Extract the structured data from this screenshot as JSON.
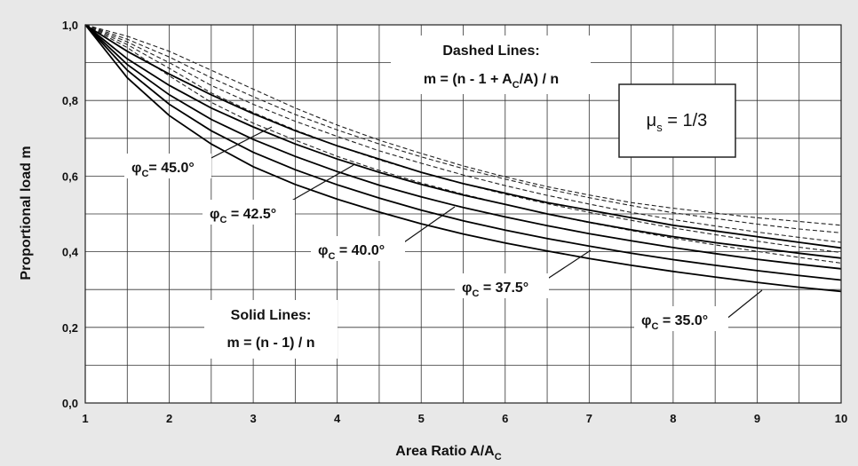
{
  "chart_data": {
    "type": "line",
    "xlabel": "Area Ratio A/A",
    "xlabel_sub": "C",
    "ylabel": "Proportional load m",
    "xlim": [
      1,
      10
    ],
    "ylim": [
      0,
      1
    ],
    "grid": true,
    "x_ticks": [
      "1",
      "2",
      "3",
      "4",
      "5",
      "6",
      "7",
      "8",
      "9",
      "10"
    ],
    "y_ticks": [
      "0,0",
      "0,2",
      "0,4",
      "0,6",
      "0,8",
      "1,0"
    ],
    "x": [
      1,
      1.5,
      2,
      2.5,
      3,
      3.5,
      4,
      4.5,
      5,
      5.5,
      6,
      6.5,
      7,
      7.5,
      8,
      8.5,
      9,
      9.5,
      10
    ],
    "solid_series": [
      {
        "phi": "45.0",
        "values": [
          1.0,
          0.93,
          0.87,
          0.815,
          0.765,
          0.72,
          0.68,
          0.645,
          0.61,
          0.58,
          0.555,
          0.53,
          0.51,
          0.49,
          0.47,
          0.455,
          0.44,
          0.425,
          0.41
        ]
      },
      {
        "phi": "42.5",
        "values": [
          1.0,
          0.91,
          0.84,
          0.78,
          0.73,
          0.685,
          0.645,
          0.61,
          0.578,
          0.55,
          0.525,
          0.5,
          0.478,
          0.458,
          0.44,
          0.424,
          0.41,
          0.396,
          0.383
        ]
      },
      {
        "phi": "40.0",
        "values": [
          1.0,
          0.895,
          0.815,
          0.75,
          0.697,
          0.652,
          0.612,
          0.576,
          0.545,
          0.517,
          0.492,
          0.469,
          0.448,
          0.429,
          0.411,
          0.395,
          0.38,
          0.367,
          0.355
        ]
      },
      {
        "phi": "37.5",
        "values": [
          1.0,
          0.88,
          0.79,
          0.72,
          0.663,
          0.617,
          0.577,
          0.542,
          0.51,
          0.482,
          0.457,
          0.435,
          0.415,
          0.396,
          0.379,
          0.364,
          0.35,
          0.337,
          0.325
        ]
      },
      {
        "phi": "35.0",
        "values": [
          1.0,
          0.86,
          0.76,
          0.685,
          0.625,
          0.578,
          0.539,
          0.505,
          0.474,
          0.447,
          0.423,
          0.402,
          0.382,
          0.364,
          0.348,
          0.333,
          0.319,
          0.306,
          0.295
        ]
      }
    ],
    "dashed_series": [
      {
        "values": [
          1.0,
          0.97,
          0.93,
          0.88,
          0.83,
          0.78,
          0.735,
          0.695,
          0.66,
          0.627,
          0.598,
          0.572,
          0.55,
          0.53,
          0.515,
          0.502,
          0.49,
          0.48,
          0.47
        ]
      },
      {
        "values": [
          1.0,
          0.962,
          0.915,
          0.86,
          0.81,
          0.763,
          0.722,
          0.685,
          0.651,
          0.62,
          0.592,
          0.566,
          0.543,
          0.522,
          0.503,
          0.488,
          0.473,
          0.46,
          0.45
        ]
      },
      {
        "values": [
          1.0,
          0.955,
          0.9,
          0.84,
          0.79,
          0.745,
          0.705,
          0.667,
          0.634,
          0.603,
          0.575,
          0.549,
          0.526,
          0.504,
          0.485,
          0.468,
          0.452,
          0.438,
          0.425
        ]
      },
      {
        "values": [
          1.0,
          0.948,
          0.885,
          0.82,
          0.768,
          0.722,
          0.68,
          0.643,
          0.61,
          0.58,
          0.552,
          0.527,
          0.504,
          0.483,
          0.463,
          0.445,
          0.428,
          0.412,
          0.398
        ]
      },
      {
        "values": [
          1.0,
          0.94,
          0.865,
          0.795,
          0.74,
          0.695,
          0.652,
          0.615,
          0.582,
          0.552,
          0.525,
          0.5,
          0.477,
          0.456,
          0.436,
          0.418,
          0.401,
          0.385,
          0.37
        ]
      }
    ],
    "annotations": {
      "dashed_title": "Dashed Lines:",
      "dashed_formula": "m = (n - 1 + A",
      "dashed_formula_sub": "C",
      "dashed_formula_end": "/A) / n",
      "solid_title": "Solid Lines:",
      "solid_formula": "m = (n - 1) / n",
      "mu_symbol": "μ",
      "mu_sub": "s",
      "mu_value": " = 1/3",
      "phi_symbol": "φ",
      "phi_sub": "C",
      "phi_labels": [
        "= 45.0°",
        " = 42.5°",
        " = 40.0°",
        " = 37.5°",
        " = 35.0°"
      ]
    }
  }
}
